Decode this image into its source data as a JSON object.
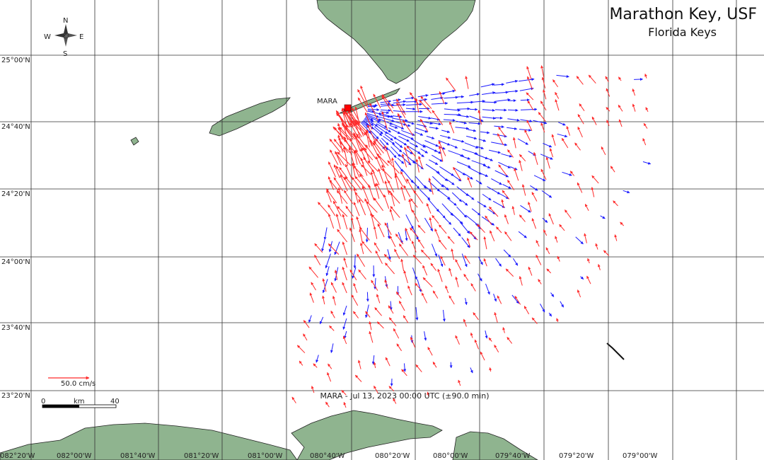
{
  "title": "Marathon Key, USF",
  "subtitle": "Florida Keys",
  "site": {
    "name": "MARA"
  },
  "timestamp": "MARA - Jul 13, 2023 00:00 UTC (±90.0 min)",
  "scale_vector": {
    "label": "50.0 cm/s"
  },
  "scale_bar": {
    "start": "0",
    "unit": "km",
    "end": "40"
  },
  "compass": {
    "n": "N",
    "s": "S",
    "e": "E",
    "w": "W"
  },
  "lat_labels": [
    "25°00'N",
    "24°40'N",
    "24°20'N",
    "24°00'N",
    "23°40'N",
    "23°20'N"
  ],
  "lon_labels": [
    "082°20'W",
    "082°00'W",
    "081°40'W",
    "081°20'W",
    "081°00'W",
    "080°40'W",
    "080°20'W",
    "080°00'W",
    "079°40'W",
    "079°20'W",
    "079°00'W"
  ],
  "colors": {
    "land": "#8fb48f",
    "onshore_vector": "#ff2a2a",
    "offshore_vector": "#1a1aff",
    "site_marker": "#ff0000",
    "grid": "#333333"
  }
}
